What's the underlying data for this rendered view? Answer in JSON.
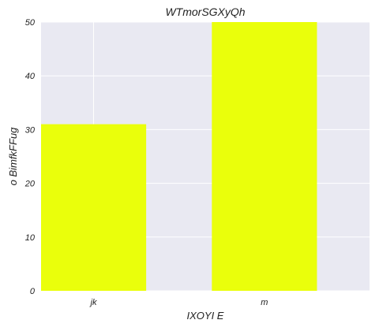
{
  "chart_data": {
    "type": "bar",
    "title": "WTmorSGXyQh",
    "xlabel": "IXOYI E",
    "ylabel": "o BimfkFFug",
    "categories": [
      "jk",
      "m"
    ],
    "values": [
      31,
      50
    ],
    "ylim": [
      0,
      50
    ],
    "yticks": [
      0,
      10,
      20,
      30,
      40,
      50
    ],
    "grid": true,
    "legend": "none",
    "colors": {
      "bar": "#eaff0b",
      "plot_background": "#e9e9f2",
      "grid": "#ffffff"
    }
  }
}
